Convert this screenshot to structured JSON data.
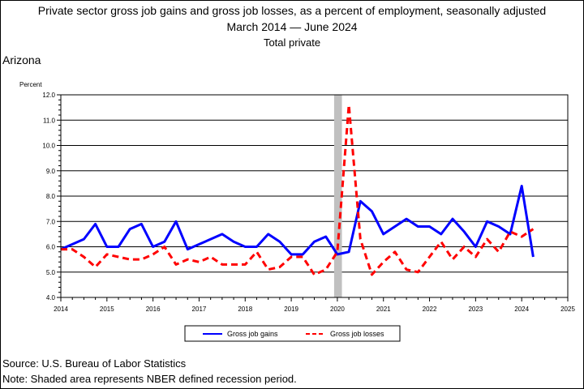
{
  "title": "Private sector gross job gains and gross job losses, as a percent of employment, seasonally adjusted",
  "subtitle_start": "March 2014",
  "subtitle_dash": "—",
  "subtitle_end": "June 2024",
  "subtitle2": "Total private",
  "region": "Arizona",
  "source": "Source: U.S. Bureau of Labor Statistics",
  "note": "Note: Shaded area represents NBER defined recession period.",
  "chart_data": {
    "type": "line",
    "ylabel": "Percent",
    "ylim": [
      4.0,
      12.0
    ],
    "yticks": [
      "4.0",
      "5.0",
      "6.0",
      "7.0",
      "8.0",
      "9.0",
      "10.0",
      "11.0",
      "12.0"
    ],
    "xlim": [
      2014,
      2025
    ],
    "xticks": [
      "2014",
      "2015",
      "2016",
      "2017",
      "2018",
      "2019",
      "2020",
      "2021",
      "2022",
      "2023",
      "2024",
      "2025"
    ],
    "grid": true,
    "legend_position": "bottom",
    "recession": [
      2020.0,
      2020.17
    ],
    "series": [
      {
        "name": "Gross job gains",
        "color": "#0000ff",
        "dash": "solid",
        "values": [
          [
            2014.0,
            5.9
          ],
          [
            2014.5,
            6.3
          ],
          [
            2014.75,
            6.9
          ],
          [
            2015.0,
            6.0
          ],
          [
            2015.25,
            6.0
          ],
          [
            2015.5,
            6.7
          ],
          [
            2015.75,
            6.9
          ],
          [
            2016.0,
            6.0
          ],
          [
            2016.25,
            6.2
          ],
          [
            2016.5,
            7.0
          ],
          [
            2016.75,
            5.9
          ],
          [
            2017.0,
            6.1
          ],
          [
            2017.5,
            6.5
          ],
          [
            2017.75,
            6.2
          ],
          [
            2018.0,
            6.0
          ],
          [
            2018.25,
            6.0
          ],
          [
            2018.5,
            6.5
          ],
          [
            2018.75,
            6.2
          ],
          [
            2019.0,
            5.7
          ],
          [
            2019.25,
            5.7
          ],
          [
            2019.5,
            6.2
          ],
          [
            2019.75,
            6.4
          ],
          [
            2020.0,
            5.7
          ],
          [
            2020.25,
            5.8
          ],
          [
            2020.5,
            7.8
          ],
          [
            2020.75,
            7.4
          ],
          [
            2021.0,
            6.5
          ],
          [
            2021.25,
            6.8
          ],
          [
            2021.5,
            7.1
          ],
          [
            2021.75,
            6.8
          ],
          [
            2022.0,
            6.8
          ],
          [
            2022.25,
            6.5
          ],
          [
            2022.5,
            7.1
          ],
          [
            2022.75,
            6.6
          ],
          [
            2023.0,
            6.0
          ],
          [
            2023.25,
            7.0
          ],
          [
            2023.5,
            6.8
          ],
          [
            2023.75,
            6.5
          ],
          [
            2024.0,
            8.4
          ],
          [
            2024.25,
            5.6
          ]
        ]
      },
      {
        "name": "Gross job losses",
        "color": "#ff0000",
        "dash": "dashed",
        "values": [
          [
            2014.0,
            5.9
          ],
          [
            2014.25,
            5.9
          ],
          [
            2014.5,
            5.6
          ],
          [
            2014.75,
            5.2
          ],
          [
            2015.0,
            5.7
          ],
          [
            2015.25,
            5.6
          ],
          [
            2015.5,
            5.5
          ],
          [
            2015.75,
            5.5
          ],
          [
            2016.0,
            5.7
          ],
          [
            2016.25,
            6.0
          ],
          [
            2016.5,
            5.3
          ],
          [
            2016.75,
            5.5
          ],
          [
            2017.0,
            5.4
          ],
          [
            2017.25,
            5.6
          ],
          [
            2017.5,
            5.3
          ],
          [
            2017.75,
            5.3
          ],
          [
            2018.0,
            5.3
          ],
          [
            2018.25,
            5.8
          ],
          [
            2018.5,
            5.1
          ],
          [
            2018.75,
            5.2
          ],
          [
            2019.0,
            5.6
          ],
          [
            2019.25,
            5.6
          ],
          [
            2019.5,
            4.9
          ],
          [
            2019.75,
            5.1
          ],
          [
            2020.0,
            5.8
          ],
          [
            2020.25,
            11.6
          ],
          [
            2020.5,
            6.3
          ],
          [
            2020.75,
            4.9
          ],
          [
            2021.0,
            5.4
          ],
          [
            2021.25,
            5.8
          ],
          [
            2021.5,
            5.1
          ],
          [
            2021.75,
            5.0
          ],
          [
            2022.0,
            5.6
          ],
          [
            2022.25,
            6.2
          ],
          [
            2022.5,
            5.5
          ],
          [
            2022.75,
            6.0
          ],
          [
            2023.0,
            5.6
          ],
          [
            2023.25,
            6.3
          ],
          [
            2023.5,
            5.8
          ],
          [
            2023.75,
            6.6
          ],
          [
            2024.0,
            6.4
          ],
          [
            2024.25,
            6.7
          ]
        ]
      }
    ]
  }
}
